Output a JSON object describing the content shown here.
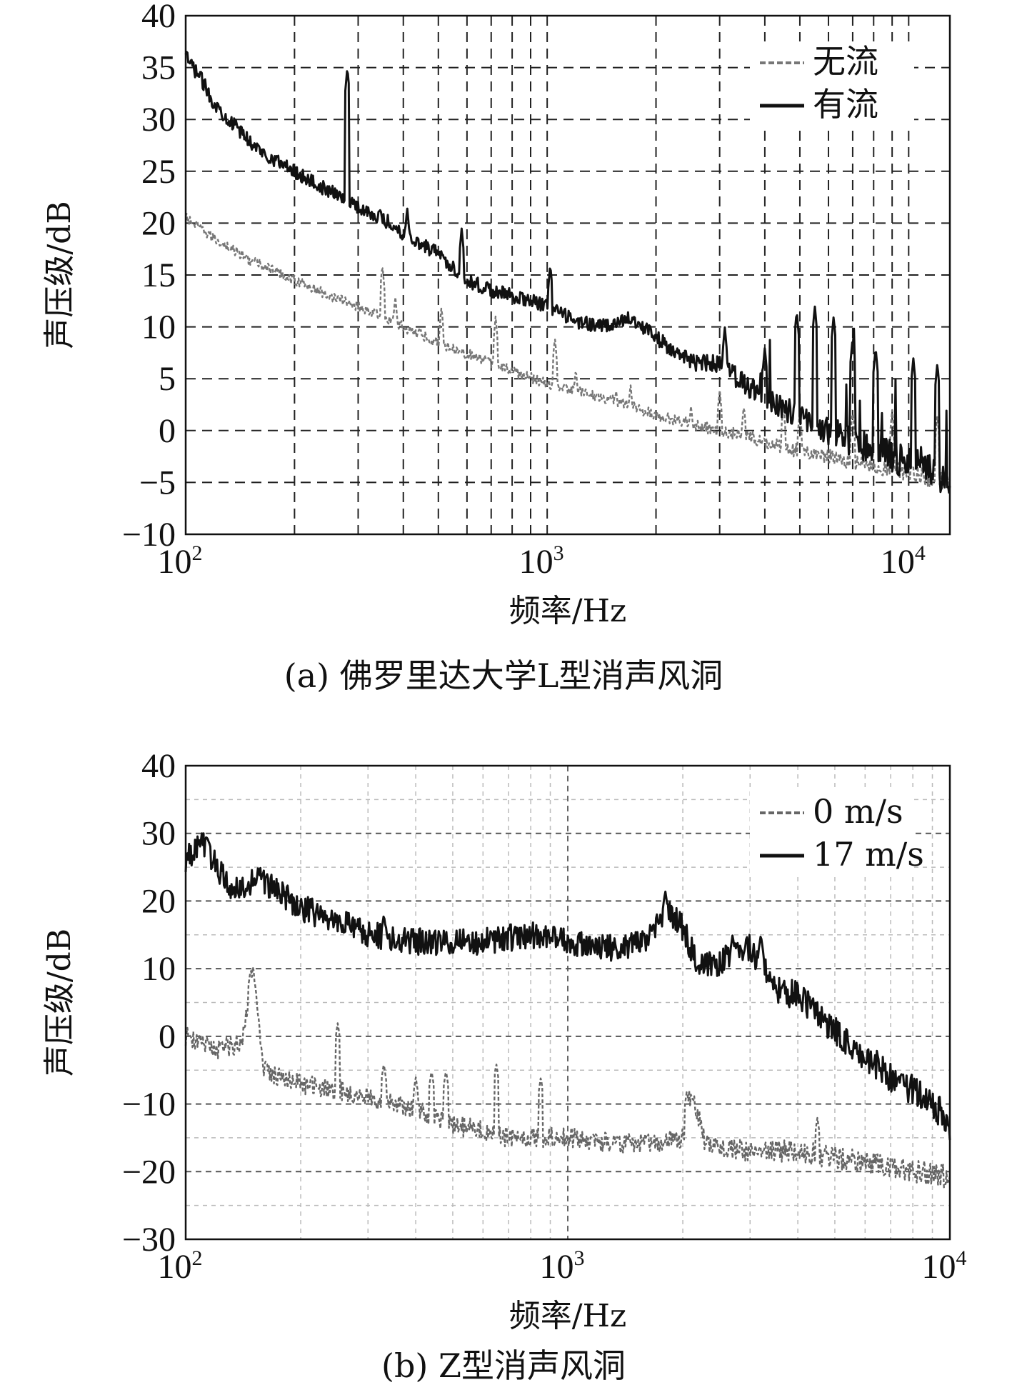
{
  "figure": {
    "caption_a": "(a) 佛罗里达大学L型消声风洞",
    "caption_b": "(b) Z型消声风洞"
  },
  "chart_data": [
    {
      "type": "line",
      "xscale": "log",
      "xlim": [
        100,
        13000
      ],
      "ylim": [
        -10,
        40
      ],
      "yticks": [
        -10,
        -5,
        0,
        5,
        10,
        15,
        20,
        25,
        30,
        35,
        40
      ],
      "ytick_labels": [
        "−10",
        "−5",
        "0",
        "5",
        "10",
        "15",
        "20",
        "25",
        "30",
        "35",
        "40"
      ],
      "xtick_labels": [
        {
          "base": "10",
          "exp": "2",
          "value": 100
        },
        {
          "base": "10",
          "exp": "3",
          "value": 1000
        },
        {
          "base": "10",
          "exp": "4",
          "value": 10000
        }
      ],
      "xlabel": "频率/Hz",
      "ylabel": "声压级/dB",
      "grid": "dashed, black, major and minor",
      "legend_position": "top-right",
      "series": [
        {
          "name": "无流",
          "style": "dashed-gray",
          "color": "#777777",
          "x": [
            100,
            120,
            150,
            200,
            250,
            300,
            400,
            500,
            700,
            1000,
            1500,
            2000,
            3000,
            4000,
            5000,
            7000,
            10000,
            13000
          ],
          "y": [
            20.5,
            18.5,
            16.5,
            14.5,
            13,
            12,
            10,
            8.5,
            6.5,
            4.5,
            3,
            1.5,
            0,
            -1,
            -2,
            -3,
            -4,
            -5
          ],
          "peaks": [
            [
              350,
              16
            ],
            [
              380,
              13
            ],
            [
              510,
              12
            ],
            [
              720,
              11
            ],
            [
              1050,
              9
            ],
            [
              1200,
              6
            ],
            [
              1550,
              4
            ],
            [
              1700,
              4.5
            ],
            [
              2500,
              2.5
            ],
            [
              3000,
              4
            ],
            [
              3500,
              2.5
            ],
            [
              4500,
              2.5
            ],
            [
              5000,
              2
            ],
            [
              7000,
              2
            ],
            [
              9000,
              2
            ],
            [
              12000,
              1.5
            ]
          ]
        },
        {
          "name": "有流",
          "style": "solid-black",
          "color": "#111111",
          "x": [
            100,
            110,
            120,
            140,
            160,
            200,
            250,
            280,
            300,
            350,
            400,
            500,
            600,
            700,
            800,
            1000,
            1200,
            1500,
            1700,
            2000,
            2500,
            3000,
            3500,
            4000,
            5000,
            6000,
            8000,
            10000,
            13000
          ],
          "y": [
            36,
            34,
            31.5,
            29,
            27,
            25,
            23,
            22.5,
            21.5,
            20.5,
            19,
            17,
            14.5,
            13.5,
            13,
            12,
            10.5,
            10,
            11,
            9,
            6.5,
            6.5,
            4.5,
            3,
            1.5,
            0,
            -2,
            -3,
            -4.5
          ],
          "peaks": [
            [
              280,
              35
            ],
            [
              410,
              21.5
            ],
            [
              490,
              18
            ],
            [
              580,
              19.5
            ],
            [
              1020,
              16
            ],
            [
              1570,
              11
            ],
            [
              3100,
              10
            ],
            [
              4000,
              8
            ],
            [
              4900,
              11.5
            ],
            [
              5500,
              12
            ],
            [
              6200,
              11
            ],
            [
              7000,
              9
            ],
            [
              8100,
              8
            ],
            [
              10300,
              7
            ],
            [
              12000,
              6.5
            ]
          ]
        }
      ]
    },
    {
      "type": "line",
      "xscale": "log",
      "xlim": [
        100,
        10000
      ],
      "ylim": [
        -30,
        40
      ],
      "yticks": [
        -30,
        -20,
        -10,
        0,
        10,
        20,
        30,
        40
      ],
      "ytick_labels": [
        "−30",
        "−20",
        "−10",
        "0",
        "10",
        "20",
        "30",
        "40"
      ],
      "xtick_labels": [
        {
          "base": "10",
          "exp": "2",
          "value": 100
        },
        {
          "base": "10",
          "exp": "3",
          "value": 1000
        },
        {
          "base": "10",
          "exp": "4",
          "value": 10000
        }
      ],
      "xlabel": "频率/Hz",
      "ylabel": "声压级/dB",
      "grid": "dashed gray, major and minor",
      "legend_position": "top-right",
      "series": [
        {
          "name": "0 m/s",
          "style": "dashed-gray",
          "color": "#666666",
          "x": [
            100,
            120,
            140,
            150,
            160,
            200,
            250,
            300,
            400,
            500,
            600,
            700,
            1000,
            1500,
            2000,
            2100,
            2300,
            3000,
            4000,
            5000,
            7000,
            10000
          ],
          "y": [
            0,
            -2,
            -1,
            10,
            -5,
            -7,
            -8,
            -9,
            -11,
            -13,
            -14,
            -15,
            -15,
            -16,
            -15,
            -8,
            -16,
            -17,
            -17,
            -18,
            -19,
            -21
          ],
          "peaks": [
            [
              148,
              10
            ],
            [
              250,
              2
            ],
            [
              330,
              -4
            ],
            [
              400,
              -6
            ],
            [
              440,
              -5
            ],
            [
              480,
              -5
            ],
            [
              650,
              -4
            ],
            [
              850,
              -6
            ],
            [
              2050,
              -8
            ],
            [
              4500,
              -12
            ]
          ]
        },
        {
          "name": "17 m/s",
          "style": "solid-black",
          "color": "#111111",
          "x": [
            100,
            110,
            130,
            160,
            200,
            250,
            300,
            400,
            500,
            600,
            800,
            1000,
            1300,
            1600,
            1800,
            2000,
            2200,
            2500,
            3000,
            3500,
            4000,
            5000,
            6000,
            7000,
            8000,
            9000,
            10000
          ],
          "y": [
            26,
            29,
            22,
            23,
            19,
            17,
            15,
            14,
            14,
            14,
            15,
            14,
            13,
            14,
            19,
            16,
            10,
            11,
            13,
            7,
            6,
            1,
            -3,
            -6,
            -8,
            -10,
            -13
          ],
          "peaks": [
            [
              110,
              29.5
            ],
            [
              155,
              25
            ],
            [
              330,
              18
            ],
            [
              1800,
              21.5
            ],
            [
              2700,
              15
            ],
            [
              3200,
              15
            ]
          ]
        }
      ]
    }
  ]
}
